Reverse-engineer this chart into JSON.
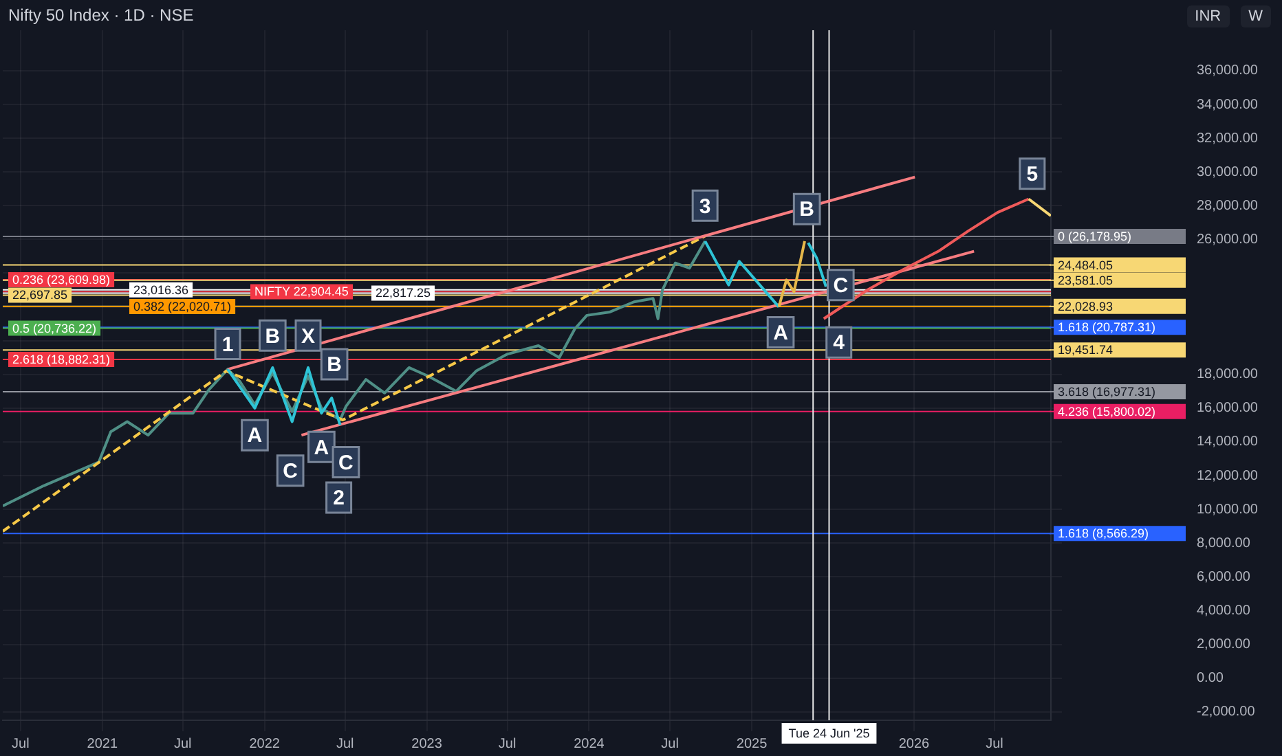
{
  "chart_data": {
    "type": "line",
    "title": "Nifty 50 Index · 1D · NSE",
    "annotations": [
      "INR",
      "W",
      {
        "text": "1",
        "x": "2021-10-10",
        "y": 19800
      },
      {
        "text": "A",
        "x": "2021-12-10",
        "y": 14400
      },
      {
        "text": "B",
        "x": "2022-01-19",
        "y": 20300
      },
      {
        "text": "C",
        "x": "2022-02-28",
        "y": 12300
      },
      {
        "text": "X",
        "x": "2022-04-09",
        "y": 20300
      },
      {
        "text": "A",
        "x": "2022-05-09",
        "y": 13700
      },
      {
        "text": "B",
        "x": "2022-06-07",
        "y": 18600
      },
      {
        "text": "2",
        "x": "2022-06-17",
        "y": 10700
      },
      {
        "text": "C",
        "x": "2022-07-03",
        "y": 12800
      },
      {
        "text": "3",
        "x": "2024-09-18",
        "y": 28000
      },
      {
        "text": "A",
        "x": "2025-03-07",
        "y": 20500
      },
      {
        "text": "B",
        "x": "2025-05-05",
        "y": 27800
      },
      {
        "text": "C",
        "x": "2025-07-20",
        "y": 23300
      },
      {
        "text": "4",
        "x": "2025-07-16",
        "y": 19900
      },
      {
        "text": "5",
        "x": "2026-09-24",
        "y": 29900
      }
    ],
    "series": [
      {
        "color": "#4f8f86",
        "x": [
          "2020-05-22",
          "2020-08-22",
          "2020-12-24",
          "2021-01-20",
          "2021-02-26",
          "2021-04-14",
          "2021-05-31",
          "2021-07-24",
          "2021-08-29",
          "2021-10-10",
          "2021-11-06",
          "2021-12-10",
          "2022-01-19",
          "2022-03-04",
          "2022-04-09",
          "2022-05-09",
          "2022-06-20",
          "2022-07-03",
          "2022-08-17",
          "2022-09-28",
          "2022-11-22",
          "2023-01-04",
          "2023-03-08",
          "2023-04-22",
          "2023-07-01",
          "2023-09-09",
          "2023-10-26",
          "2023-11-30",
          "2023-12-27",
          "2024-02-17",
          "2024-04-11",
          "2024-05-24",
          "2024-06-04",
          "2024-06-14",
          "2024-07-13",
          "2024-08-14",
          "2024-09-18"
        ],
        "values": [
          10200,
          11400,
          12800,
          14600,
          15200,
          14400,
          15700,
          15700,
          17100,
          18300,
          17600,
          16200,
          18100,
          15800,
          17900,
          16000,
          15300,
          16100,
          17700,
          16900,
          18400,
          17900,
          17000,
          18200,
          19200,
          19700,
          19000,
          20700,
          21500,
          21700,
          22300,
          22500,
          21300,
          23000,
          24600,
          24300,
          25900
        ]
      },
      {
        "color": "#f7c948",
        "line_style": "dashed",
        "x": [
          "2020-05-22",
          "2021-10-07",
          "2022-06-26",
          "2024-09-18"
        ],
        "values": [
          8700,
          18200,
          15300,
          26200
        ]
      },
      {
        "color": "#f77c80",
        "x": [
          "2021-10-10",
          "2026-01-03"
        ],
        "values": [
          18300,
          29700
        ]
      },
      {
        "color": "#f77c80",
        "x": [
          "2022-03-25",
          "2026-05-16"
        ],
        "values": [
          14400,
          25300
        ]
      },
      {
        "color": "#2ec4d6",
        "x": [
          "2021-10-10",
          "2021-12-10",
          "2022-01-19",
          "2022-03-04",
          "2022-04-09",
          "2022-05-09",
          "2022-06-01",
          "2022-06-20"
        ],
        "values": [
          18300,
          16000,
          18400,
          15200,
          18400,
          15700,
          16600,
          15000
        ]
      },
      {
        "color": "#2ec4d6",
        "x": [
          "2024-09-18",
          "2024-11-10",
          "2024-12-04",
          "2025-03-03"
        ],
        "values": [
          25900,
          23300,
          24700,
          22000
        ]
      },
      {
        "color": "#e6b84a",
        "x": [
          "2025-03-03",
          "2025-03-20",
          "2025-04-06",
          "2025-04-30"
        ],
        "values": [
          22000,
          23600,
          22900,
          25900
        ]
      },
      {
        "color": "#2ec4d6",
        "x": [
          "2025-05-08",
          "2025-05-27",
          "2025-06-17"
        ],
        "values": [
          25800,
          24900,
          23200
        ]
      },
      {
        "color": "#f05a5a",
        "x": [
          "2025-06-12",
          "2025-09-18",
          "2025-12-07",
          "2026-02-25",
          "2026-05-03",
          "2026-07-08",
          "2026-09-16"
        ],
        "values": [
          21300,
          23000,
          24200,
          25300,
          26500,
          27600,
          28400
        ]
      },
      {
        "color": "#f7d774",
        "x": [
          "2026-09-16",
          "2026-11-05"
        ],
        "values": [
          28400,
          27400
        ]
      }
    ],
    "ref_lines": [
      {
        "axis": "y",
        "value": 26178.95,
        "label": "0 (26,178.95)",
        "color": "#787b86"
      },
      {
        "axis": "y",
        "value": 24484.05,
        "label": "24,484.05",
        "color": "#f7d774"
      },
      {
        "axis": "y",
        "value": 23609.98,
        "label": "0.236 (23,609.98)",
        "color": "#f23645"
      },
      {
        "axis": "y",
        "value": 23581.05,
        "label": "23,581.05",
        "color": "#f7d774"
      },
      {
        "axis": "y",
        "value": 23016.36,
        "label": "23,016.36",
        "color": "#ffffff"
      },
      {
        "axis": "y",
        "value": 22904.45,
        "label": "NIFTY 22,904.45",
        "color": "#f23645"
      },
      {
        "axis": "y",
        "value": 22817.25,
        "label": "22,817.25",
        "color": "#ffffff"
      },
      {
        "axis": "y",
        "value": 22697.85,
        "label": "22,697.85",
        "color": "#f7d774"
      },
      {
        "axis": "y",
        "value": 22028.93,
        "label": "22,028.93",
        "color": "#f7d774"
      },
      {
        "axis": "y",
        "value": 22020.71,
        "label": "0.382 (22,020.71)",
        "color": "#ff9800"
      },
      {
        "axis": "y",
        "value": 20787.31,
        "label": "1.618 (20,787.31)",
        "color": "#2962ff"
      },
      {
        "axis": "y",
        "value": 20736.22,
        "label": "0.5 (20,736.22)",
        "color": "#4caf50"
      },
      {
        "axis": "y",
        "value": 19451.74,
        "label": "19,451.74",
        "color": "#f7d774"
      },
      {
        "axis": "y",
        "value": 18882.31,
        "label": "2.618 (18,882.31)",
        "color": "#f23645"
      },
      {
        "axis": "y",
        "value": 16977.31,
        "label": "3.618 (16,977.31)",
        "color": "#9598a1"
      },
      {
        "axis": "y",
        "value": 15800.02,
        "label": "4.236 (15,800.02)",
        "color": "#e91e63"
      },
      {
        "axis": "y",
        "value": 8566.29,
        "label": "1.618 (8,566.29)",
        "color": "#2962ff"
      },
      {
        "axis": "x",
        "value": "2025-05-19",
        "color": "#e8e8e8"
      },
      {
        "axis": "x",
        "value": "2025-06-24",
        "label": "Tue 24 Jun '25",
        "color": "#e8e8e8"
      }
    ],
    "xlim": [
      "2020-05-22",
      "2026-11-05"
    ],
    "xticks": [
      {
        "value": "2020-07-01",
        "label": "Jul"
      },
      {
        "value": "2021-01-01",
        "label": "2021"
      },
      {
        "value": "2021-07-01",
        "label": "Jul"
      },
      {
        "value": "2022-01-01",
        "label": "2022"
      },
      {
        "value": "2022-07-01",
        "label": "Jul"
      },
      {
        "value": "2023-01-01",
        "label": "2023"
      },
      {
        "value": "2023-07-01",
        "label": "Jul"
      },
      {
        "value": "2024-01-01",
        "label": "2024"
      },
      {
        "value": "2024-07-01",
        "label": "Jul"
      },
      {
        "value": "2025-01-01",
        "label": "2025"
      },
      {
        "value": "2026-01-01",
        "label": "2026"
      },
      {
        "value": "2026-07-01",
        "label": "Jul"
      }
    ],
    "ylim": [
      -2500,
      38400
    ],
    "yticks": [
      {
        "value": -2000,
        "label": "-2,000.00"
      },
      {
        "value": 0,
        "label": "0.00"
      },
      {
        "value": 2000,
        "label": "2,000.00"
      },
      {
        "value": 4000,
        "label": "4,000.00"
      },
      {
        "value": 6000,
        "label": "6,000.00"
      },
      {
        "value": 8000,
        "label": "8,000.00"
      },
      {
        "value": 10000,
        "label": "10,000.00"
      },
      {
        "value": 12000,
        "label": "12,000.00"
      },
      {
        "value": 14000,
        "label": "14,000.00"
      },
      {
        "value": 16000,
        "label": "16,000.00"
      },
      {
        "value": 18000,
        "label": "18,000.00"
      },
      {
        "value": 20000,
        "label": null
      },
      {
        "value": 22000,
        "label": null
      },
      {
        "value": 24000,
        "label": null
      },
      {
        "value": 26000,
        "label": "26,000.00"
      },
      {
        "value": 28000,
        "label": "28,000.00"
      },
      {
        "value": 30000,
        "label": "30,000.00"
      },
      {
        "value": 32000,
        "label": "32,000.00"
      },
      {
        "value": 34000,
        "label": "34,000.00"
      },
      {
        "value": 36000,
        "label": "36,000.00"
      }
    ],
    "grid": true,
    "legend": false,
    "marker": "none"
  }
}
